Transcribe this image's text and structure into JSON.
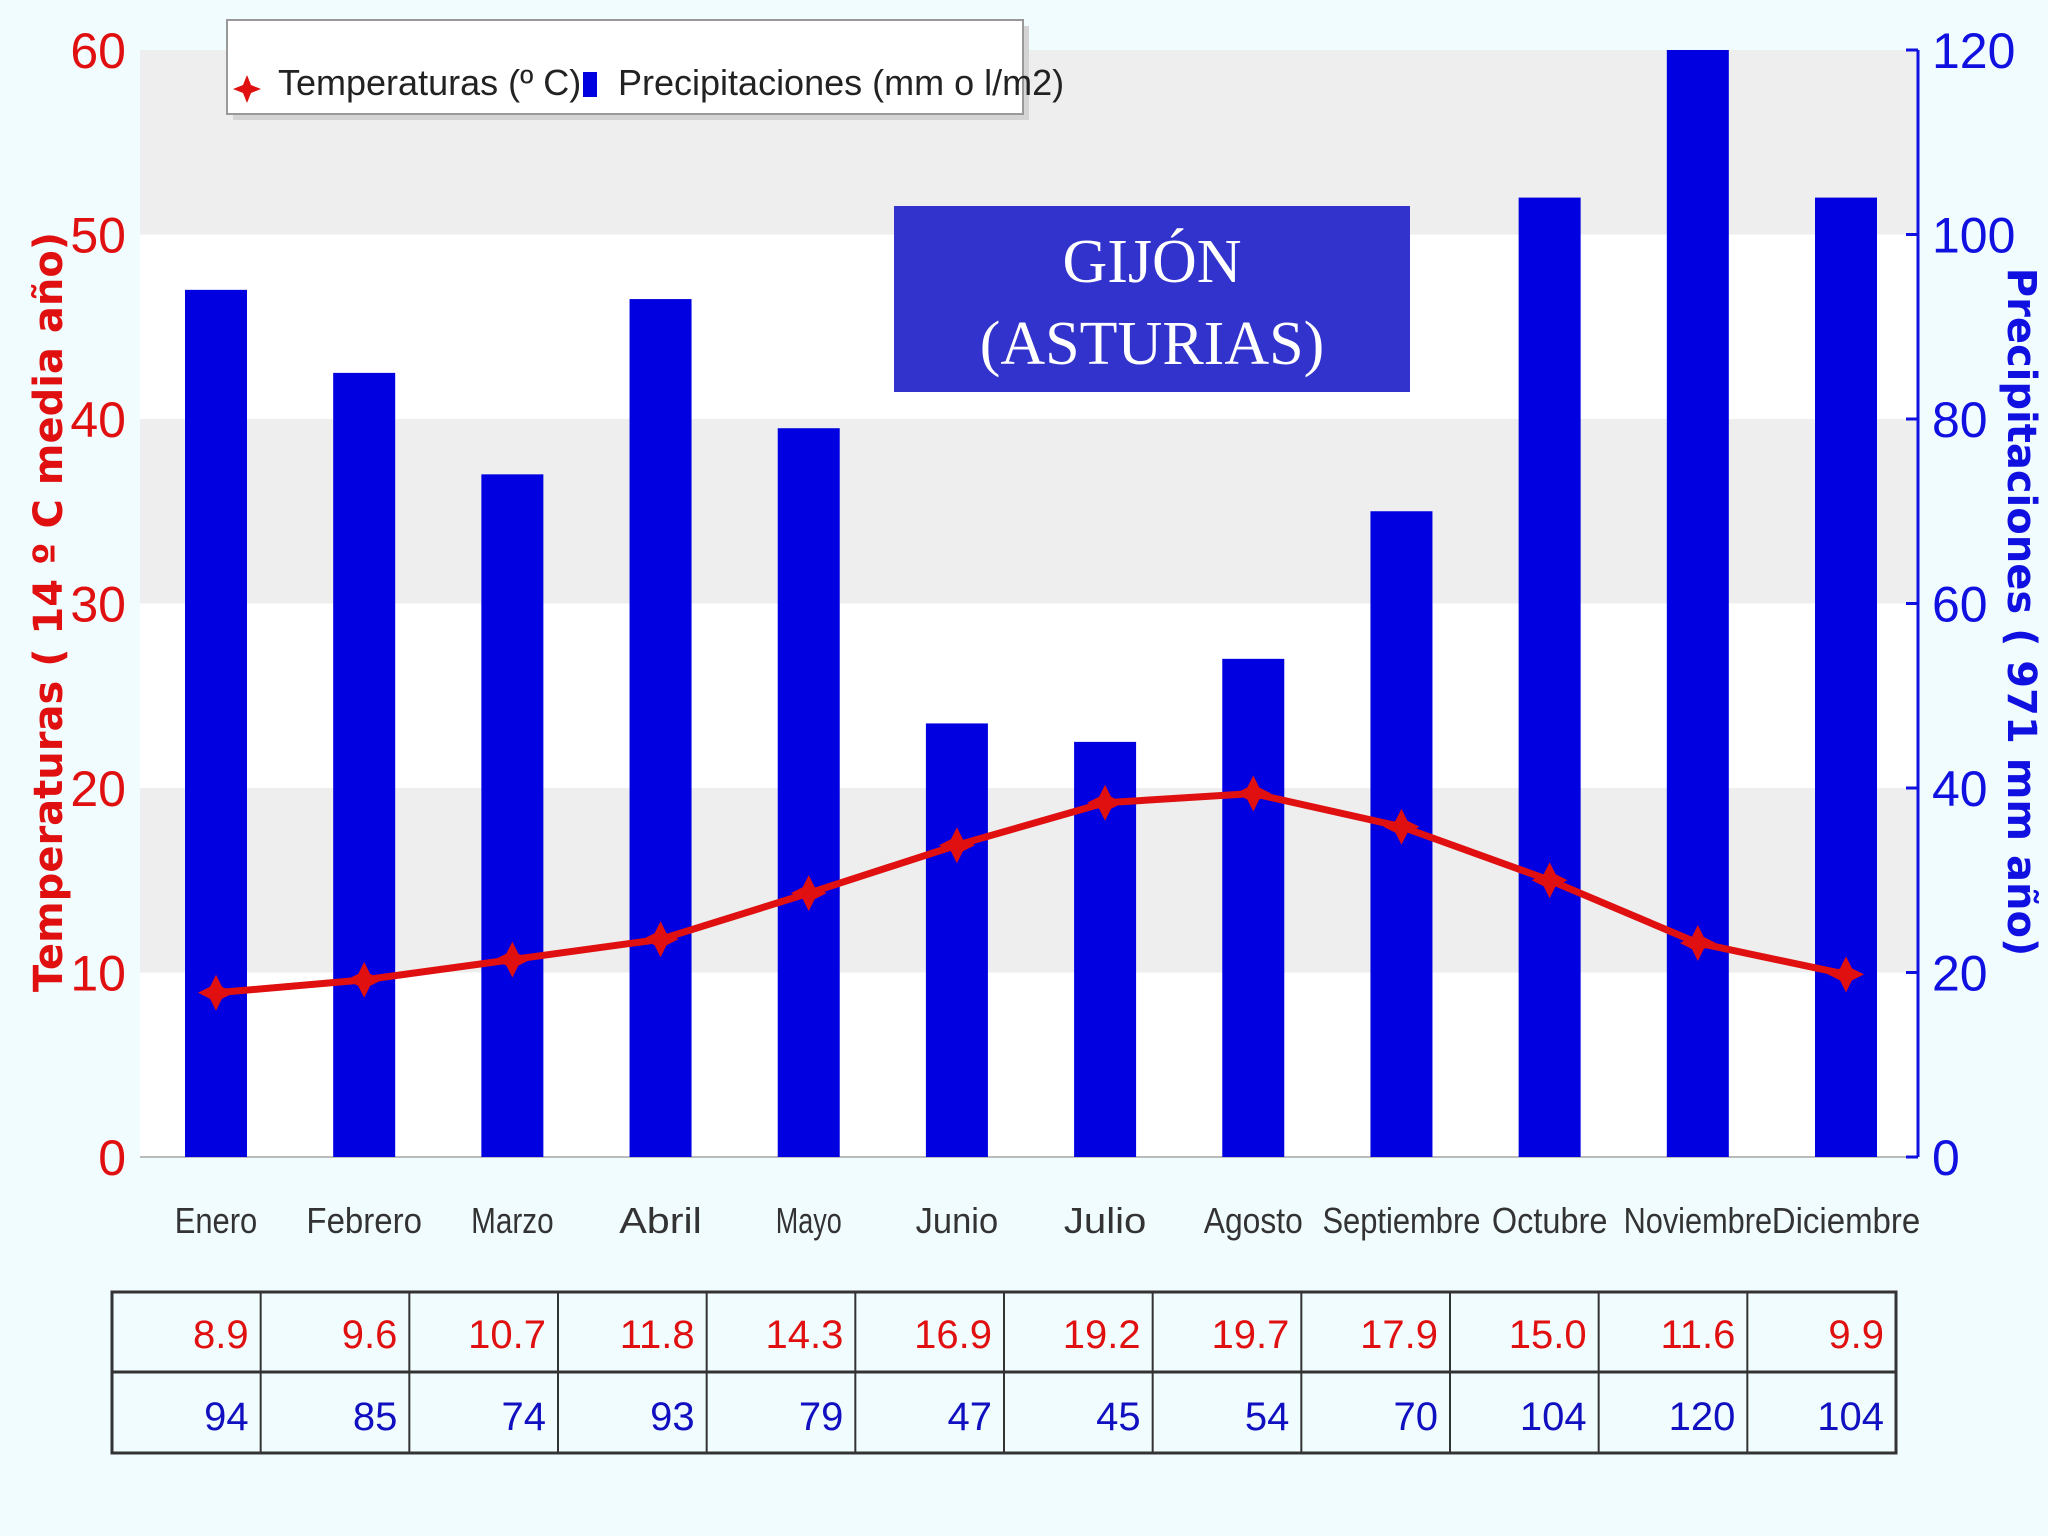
{
  "chart_data": {
    "type": "bar+line",
    "title": "GIJÓN (ASTURIAS)",
    "title_lines": [
      "GIJÓN",
      "(ASTURIAS)"
    ],
    "categories": [
      "Enero",
      "Febrero",
      "Marzo",
      "Abril",
      "Mayo",
      "Junio",
      "Julio",
      "Agosto",
      "Septiembre",
      "Octubre",
      "Noviembre",
      "Diciembre"
    ],
    "series": [
      {
        "name": "Temperaturas (º C)",
        "type": "line",
        "axis": "left",
        "color": "#e01010",
        "values": [
          8.9,
          9.6,
          10.7,
          11.8,
          14.3,
          16.9,
          19.2,
          19.7,
          17.9,
          15.0,
          11.6,
          9.9
        ],
        "labels": [
          "8.9",
          "9.6",
          "10.7",
          "11.8",
          "14.3",
          "16.9",
          "19.2",
          "19.7",
          "17.9",
          "15.0",
          "11.6",
          "9.9"
        ]
      },
      {
        "name": "Precipitaciones (mm o l/m2)",
        "type": "bar",
        "axis": "right",
        "color": "#0000e0",
        "values": [
          94,
          85,
          74,
          93,
          79,
          47,
          45,
          54,
          70,
          104,
          120,
          104
        ],
        "labels": [
          "94",
          "85",
          "74",
          "93",
          "79",
          "47",
          "45",
          "54",
          "70",
          "104",
          "120",
          "104"
        ]
      }
    ],
    "y_left": {
      "label": "Temperaturas  ( 14 º C media año)",
      "min": 0,
      "max": 60,
      "ticks": [
        "0",
        "10",
        "20",
        "30",
        "40",
        "50",
        "60"
      ]
    },
    "y_right": {
      "label": "Precipitaciones ( 971 mm año)",
      "min": 0,
      "max": 120,
      "ticks": [
        "0",
        "20",
        "40",
        "60",
        "80",
        "100",
        "120"
      ]
    },
    "legend": {
      "position": "top-left",
      "items": [
        "Temperaturas (º C)",
        "Precipitaciones (mm o l/m2)"
      ]
    },
    "grid": true
  },
  "colors": {
    "temperature": "#e01010",
    "precipitation": "#0000e0",
    "title_box": "#3232cc",
    "background": "#f1fcff"
  }
}
